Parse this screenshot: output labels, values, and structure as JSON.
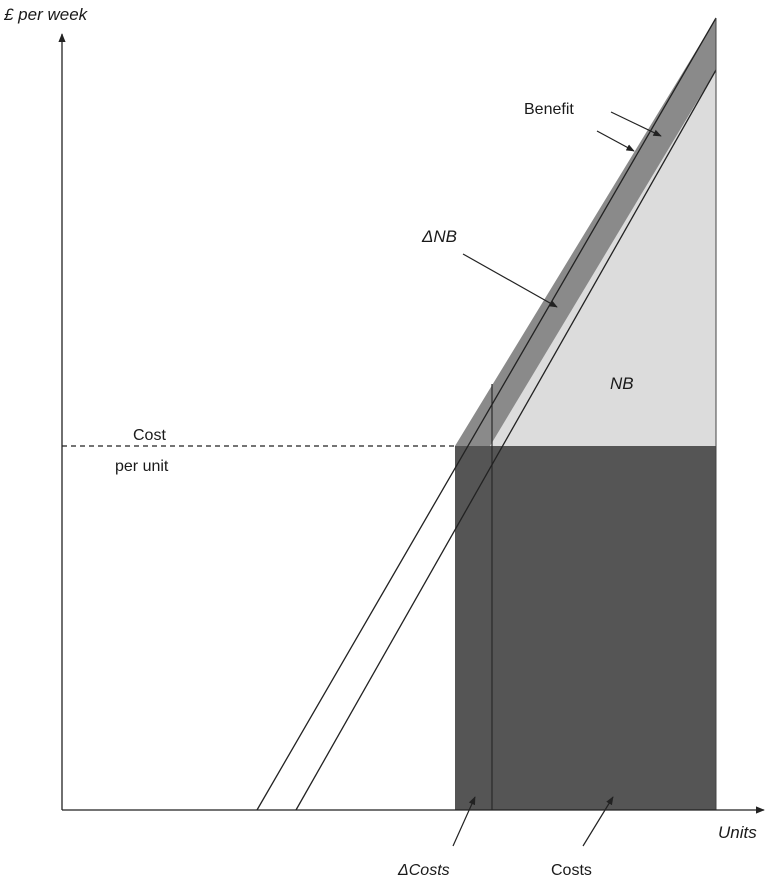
{
  "diagram": {
    "y_axis_label": "£ per week",
    "x_axis_label": "Units",
    "labels": {
      "benefit": "Benefit",
      "delta_nb": "ΔNB",
      "nb": "NB",
      "cost_line1": "Cost",
      "cost_line2": "per unit",
      "delta_costs": "ΔCosts",
      "costs": "Costs"
    },
    "colors": {
      "costs_fill": "#555555",
      "nb_fill": "#dcdcdc",
      "delta_nb_fill": "#8a8a8a",
      "line": "#222222"
    }
  }
}
